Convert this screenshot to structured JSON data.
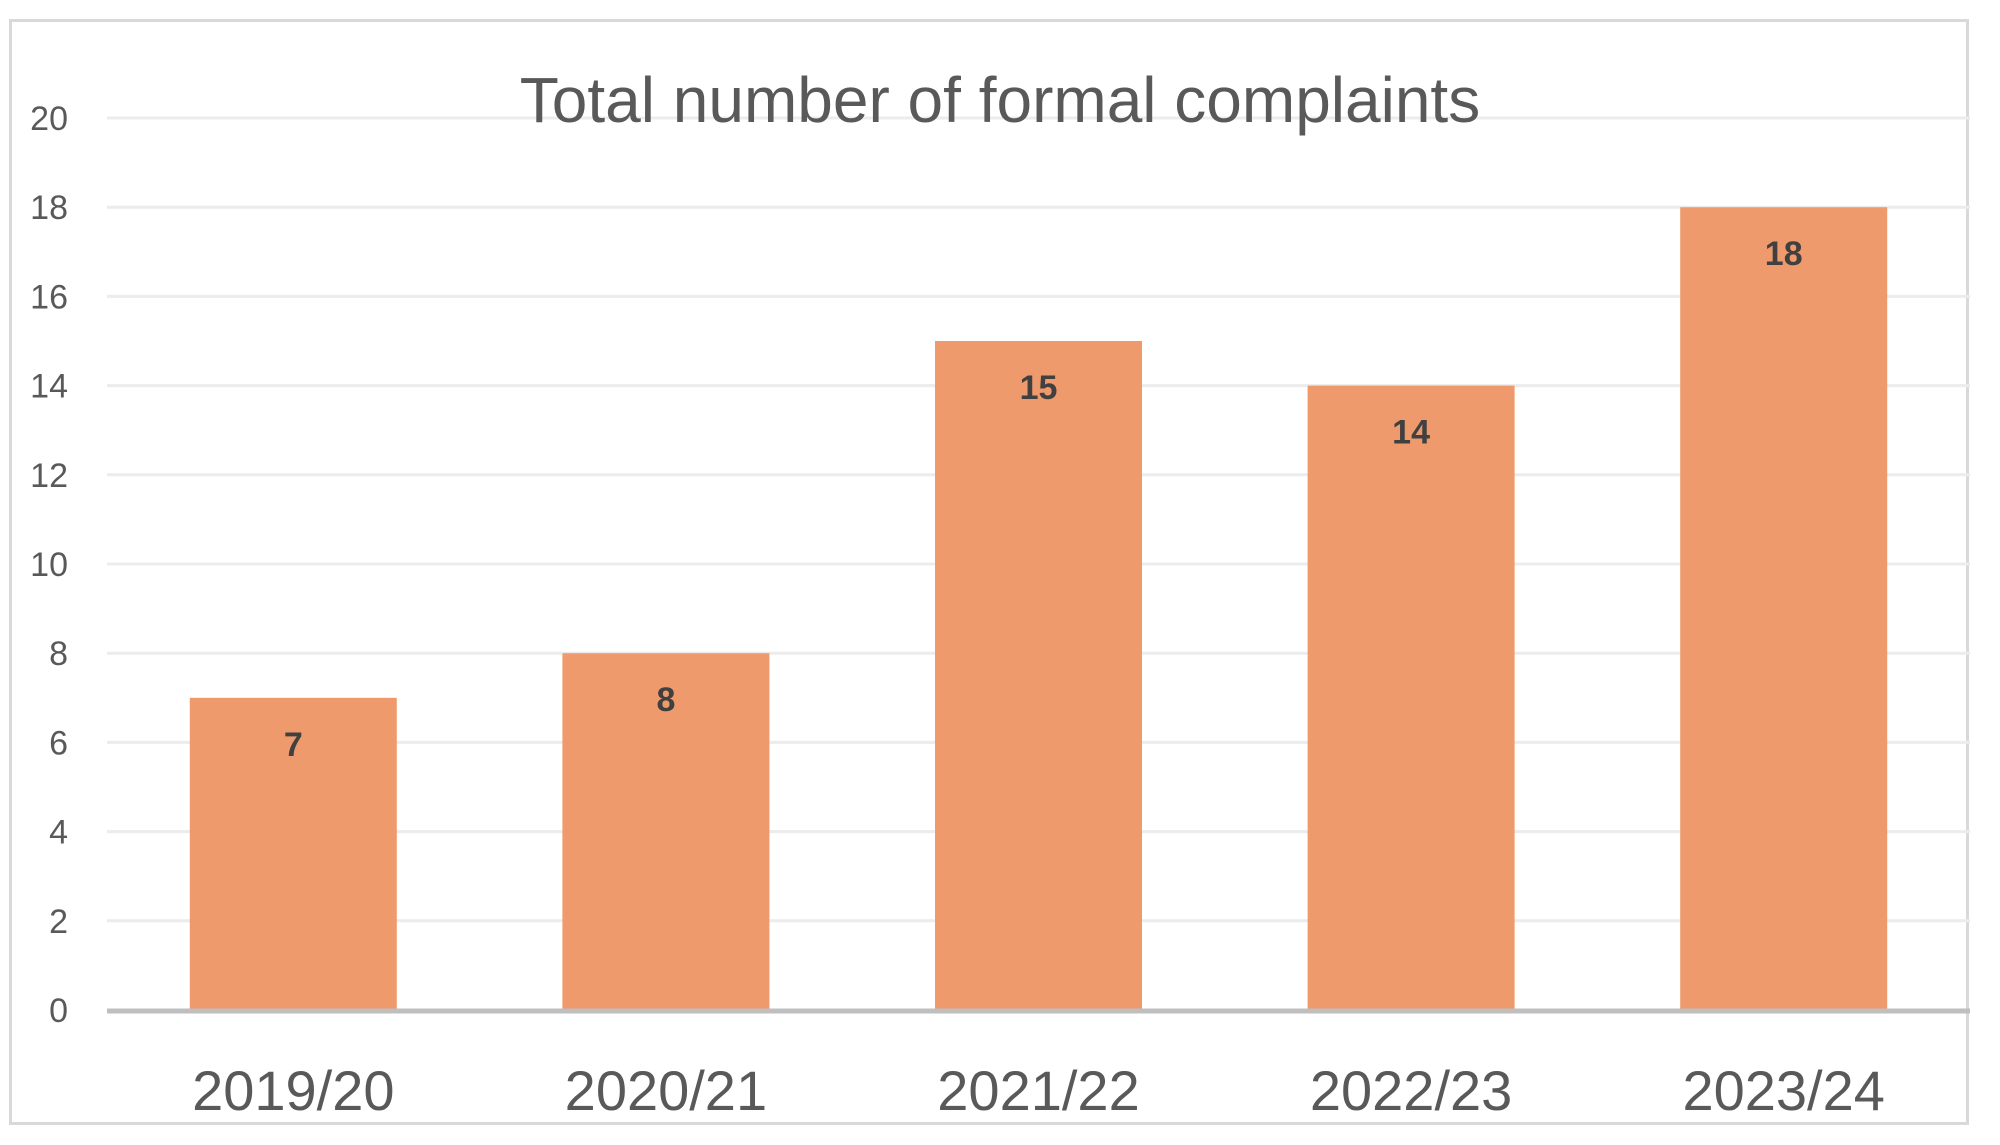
{
  "chart_data": {
    "type": "bar",
    "title": "Total number of formal complaints",
    "xlabel": "",
    "ylabel": "",
    "categories": [
      "2019/20",
      "2020/21",
      "2021/22",
      "2022/23",
      "2023/24"
    ],
    "values": [
      7,
      8,
      15,
      14,
      18
    ],
    "ylim": [
      0,
      20
    ],
    "yticks": [
      0,
      2,
      4,
      6,
      8,
      10,
      12,
      14,
      16,
      18,
      20
    ],
    "grid": true,
    "legend": "none",
    "data_labels": true,
    "colors": {
      "bar": "#ee9a6c",
      "gridline": "#ececec",
      "axis": "#bfbfbf",
      "text": "#595959",
      "data_label": "#404040"
    }
  }
}
